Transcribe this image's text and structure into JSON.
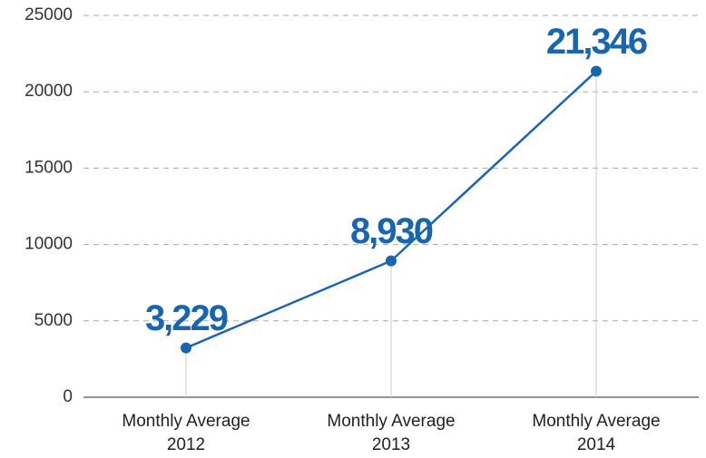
{
  "chart_data": {
    "type": "line",
    "categories": [
      "Monthly Average 2012",
      "Monthly Average 2013",
      "Monthly Average 2014"
    ],
    "series": [
      {
        "color": "#1a66ae",
        "values": [
          3229,
          8930,
          21346
        ],
        "value_labels": [
          "3,229",
          "8,930",
          "21,346"
        ]
      }
    ],
    "ylim": [
      0,
      25000
    ],
    "yticks": [
      0,
      5000,
      10000,
      15000,
      20000,
      25000
    ],
    "grid": true
  }
}
